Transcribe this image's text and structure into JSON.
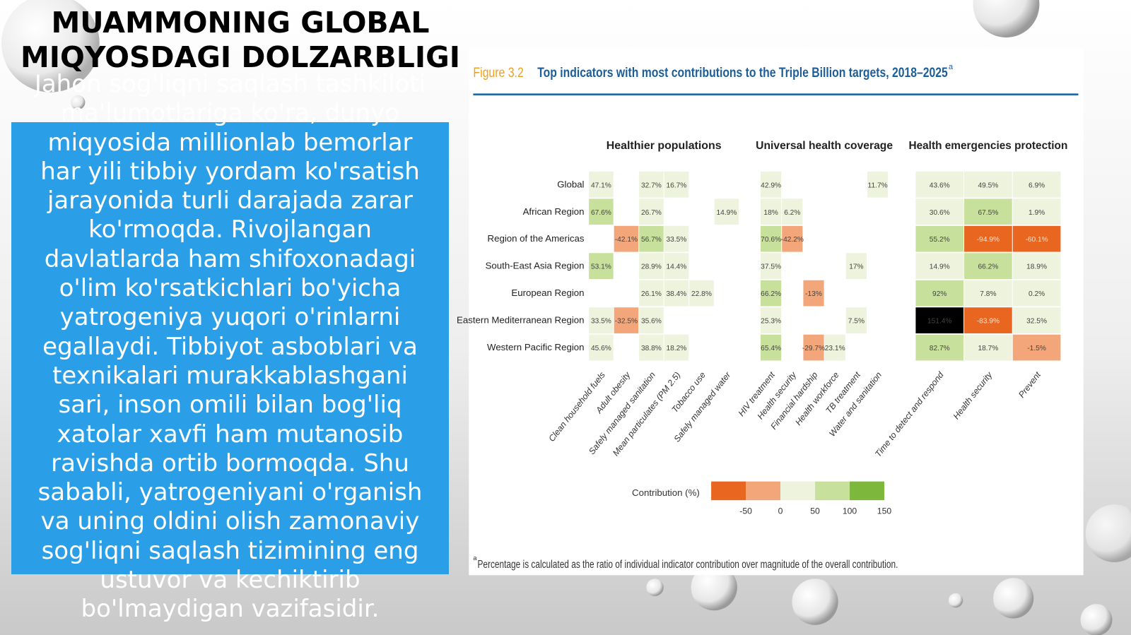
{
  "slide": {
    "title": "MUAMMONING GLOBAL MIQYOSDAGI DOLZARBLIGI",
    "body_lines": [
      "Jahon sog'liqni saqlash tashkiloti",
      "ma'lumotlariga ko'ra, dunyo",
      "miqyosida millionlab bemorlar",
      "har yili tibbiy yordam ko'rsatish",
      "jarayonida turli darajada zarar",
      "ko'rmoqda. Rivojlangan",
      "davlatlarda ham shifoxonadagi",
      "o'lim ko'rsatkichlari bo'yicha",
      "yatrogeniya yuqori o'rinlarni",
      "egallaydi. Tibbiyot asboblari va",
      "texnikalari murakkablashgani",
      "sari, inson omili bilan bog'liq",
      "xatolar xavfi ham mutanosib",
      "ravishda ortib bormoqda. Shu",
      "sababli, yatrogeniyani o'rganish",
      "va uning oldini olish zamonaviy",
      "sog'liqni saqlash tizimining eng",
      "ustuvor va kechiktirib",
      "bo'lmaydigan vazifasidir."
    ]
  },
  "figure": {
    "label": "Figure 3.2",
    "title": "Top indicators with most contributions to the Triple Billion targets, 2018–2025",
    "title_marker": "a",
    "groups": [
      {
        "name": "Healthier populations",
        "columns": [
          "Clean household fuels",
          "Adult obesity",
          "Safely managed sanitation",
          "Mean particulates (PM 2.5)",
          "Tobacco use",
          "Safely managed water"
        ]
      },
      {
        "name": "Universal health coverage",
        "columns": [
          "HIV treatment",
          "Health security",
          "Financial hardship",
          "Health workforce",
          "TB treatment",
          "Water and sanitation"
        ]
      },
      {
        "name": "Health emergencies protection",
        "columns": [
          "Time to detect and respond",
          "Health security",
          "Prevent"
        ]
      }
    ],
    "rows": [
      "Global",
      "African Region",
      "Region of the Americas",
      "South-East Asia Region",
      "European Region",
      "Eastern Mediterranean Region",
      "Western Pacific Region"
    ],
    "cells": [
      [
        "47.1%",
        null,
        "32.7%",
        "16.7%",
        null,
        null,
        "42.9%",
        null,
        null,
        null,
        null,
        "11.7%",
        "43.6%",
        "49.5%",
        "6.9%"
      ],
      [
        "67.6%",
        null,
        "26.7%",
        null,
        null,
        "14.9%",
        "18%",
        "6.2%",
        null,
        null,
        null,
        null,
        "30.6%",
        "67.5%",
        "1.9%"
      ],
      [
        null,
        "-42.1%",
        "56.7%",
        "33.5%",
        null,
        null,
        "70.6%",
        "-42.2%",
        null,
        null,
        null,
        null,
        "55.2%",
        "-94.9%",
        "-60.1%"
      ],
      [
        "53.1%",
        null,
        "28.9%",
        "14.4%",
        null,
        null,
        "37.5%",
        null,
        null,
        null,
        "17%",
        null,
        "14.9%",
        "66.2%",
        "18.9%"
      ],
      [
        null,
        null,
        "26.1%",
        "38.4%",
        "22.8%",
        null,
        "66.2%",
        null,
        "-13%",
        null,
        null,
        null,
        "92%",
        "7.8%",
        "0.2%"
      ],
      [
        "33.5%",
        "-32.5%",
        "35.6%",
        null,
        null,
        null,
        "25.3%",
        null,
        null,
        null,
        "7.5%",
        null,
        "151.4%",
        "-83.9%",
        "32.5%"
      ],
      [
        "45.6%",
        null,
        "38.8%",
        "18.2%",
        null,
        null,
        "65.4%",
        null,
        "-29.7%",
        "23.1%",
        null,
        null,
        "82.7%",
        "18.7%",
        "-1.5%"
      ]
    ],
    "legend": {
      "label": "Contribution (%)",
      "ticks": [
        -50,
        0,
        50,
        100,
        150
      ],
      "colors": [
        "#e8661f",
        "#f2a679",
        "#edf3dc",
        "#c7e19c",
        "#7db83c"
      ]
    },
    "footnote_marker": "a",
    "footnote": "Percentage is calculated as the ratio of individual indicator contribution over magnitude of the overall contribution."
  }
}
